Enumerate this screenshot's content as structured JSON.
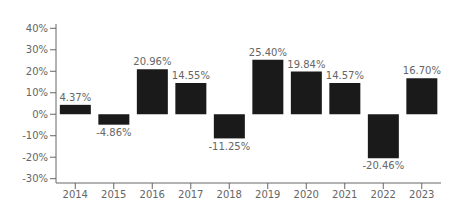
{
  "chart_data": {
    "type": "bar",
    "categories": [
      "2014",
      "2015",
      "2016",
      "2017",
      "2018",
      "2019",
      "2020",
      "2021",
      "2022",
      "2023"
    ],
    "values": [
      4.37,
      -4.86,
      20.96,
      14.55,
      -11.25,
      25.4,
      19.84,
      14.57,
      -20.46,
      16.7
    ],
    "value_labels": [
      "4.37%",
      "-4.86%",
      "20.96%",
      "14.55%",
      "-11.25%",
      "25.40%",
      "19.84%",
      "14.57%",
      "-20.46%",
      "16.70%"
    ],
    "color": "#1a1a1a",
    "ylim": [
      -32,
      42
    ],
    "yticks": [
      {
        "value": -30,
        "label": "-30%"
      },
      {
        "value": -20,
        "label": "-20%"
      },
      {
        "value": -10,
        "label": "-10%"
      },
      {
        "value": 0,
        "label": "0%"
      },
      {
        "value": 10,
        "label": "10%"
      },
      {
        "value": 20,
        "label": "20%"
      },
      {
        "value": 30,
        "label": "30%"
      },
      {
        "value": 40,
        "label": "40%"
      }
    ],
    "grid": false,
    "data_labels": true
  }
}
